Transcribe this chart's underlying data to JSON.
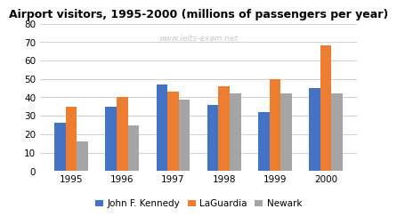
{
  "title": "Airport visitors, 1995-2000 (millions of passengers per year)",
  "watermark": "www.ielts-exam.net",
  "years": [
    1995,
    1996,
    1997,
    1998,
    1999,
    2000
  ],
  "series": {
    "John F. Kennedy": [
      26,
      35,
      47,
      36,
      32,
      45
    ],
    "LaGuardia": [
      35,
      40,
      43,
      46,
      50,
      68
    ],
    "Newark": [
      16,
      25,
      39,
      42,
      42,
      42
    ]
  },
  "colors": {
    "John F. Kennedy": "#4472C4",
    "LaGuardia": "#ED7D31",
    "Newark": "#A5A5A5"
  },
  "ylim": [
    0,
    80
  ],
  "yticks": [
    0,
    10,
    20,
    30,
    40,
    50,
    60,
    70,
    80
  ],
  "bar_width": 0.22,
  "background_color": "#ffffff",
  "grid_color": "#d0d0d0",
  "title_fontsize": 9,
  "legend_fontsize": 7.5,
  "tick_fontsize": 7.5,
  "watermark_color": "#c8c8c8",
  "watermark_fontsize": 6.5
}
